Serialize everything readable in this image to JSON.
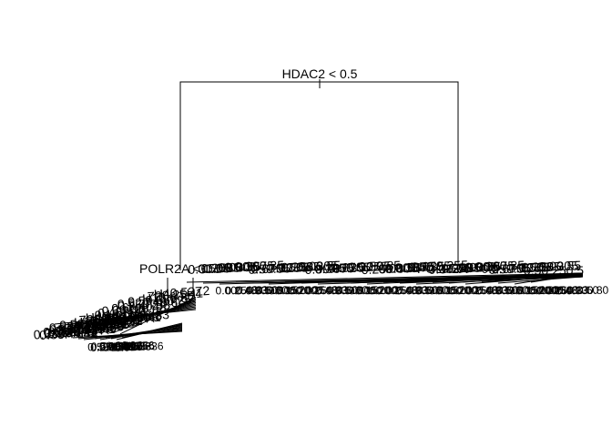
{
  "root_split": "HDAC2 < 0.5",
  "left_split": "POLR2A < 0.5",
  "right_split": "POLR2A < 0.5",
  "line_color": "#000000",
  "background_color": "#ffffff",
  "right_cluster_labels": [
    "0.3",
    "0.5",
    "0.25",
    "0.0",
    "0.8",
    "0.30",
    "0.5",
    "0.67"
  ],
  "right_cluster_lower_labels": [
    "0.00",
    "0.25",
    "0.48",
    "0.33",
    "0.50",
    "0.80",
    "0.15",
    "0.2"
  ],
  "left_cluster_labels": [
    "H4",
    "Z2",
    "H1",
    "0.5",
    "0.52",
    "0.25",
    "0.6",
    "0.33",
    "0.48",
    "0.1"
  ]
}
